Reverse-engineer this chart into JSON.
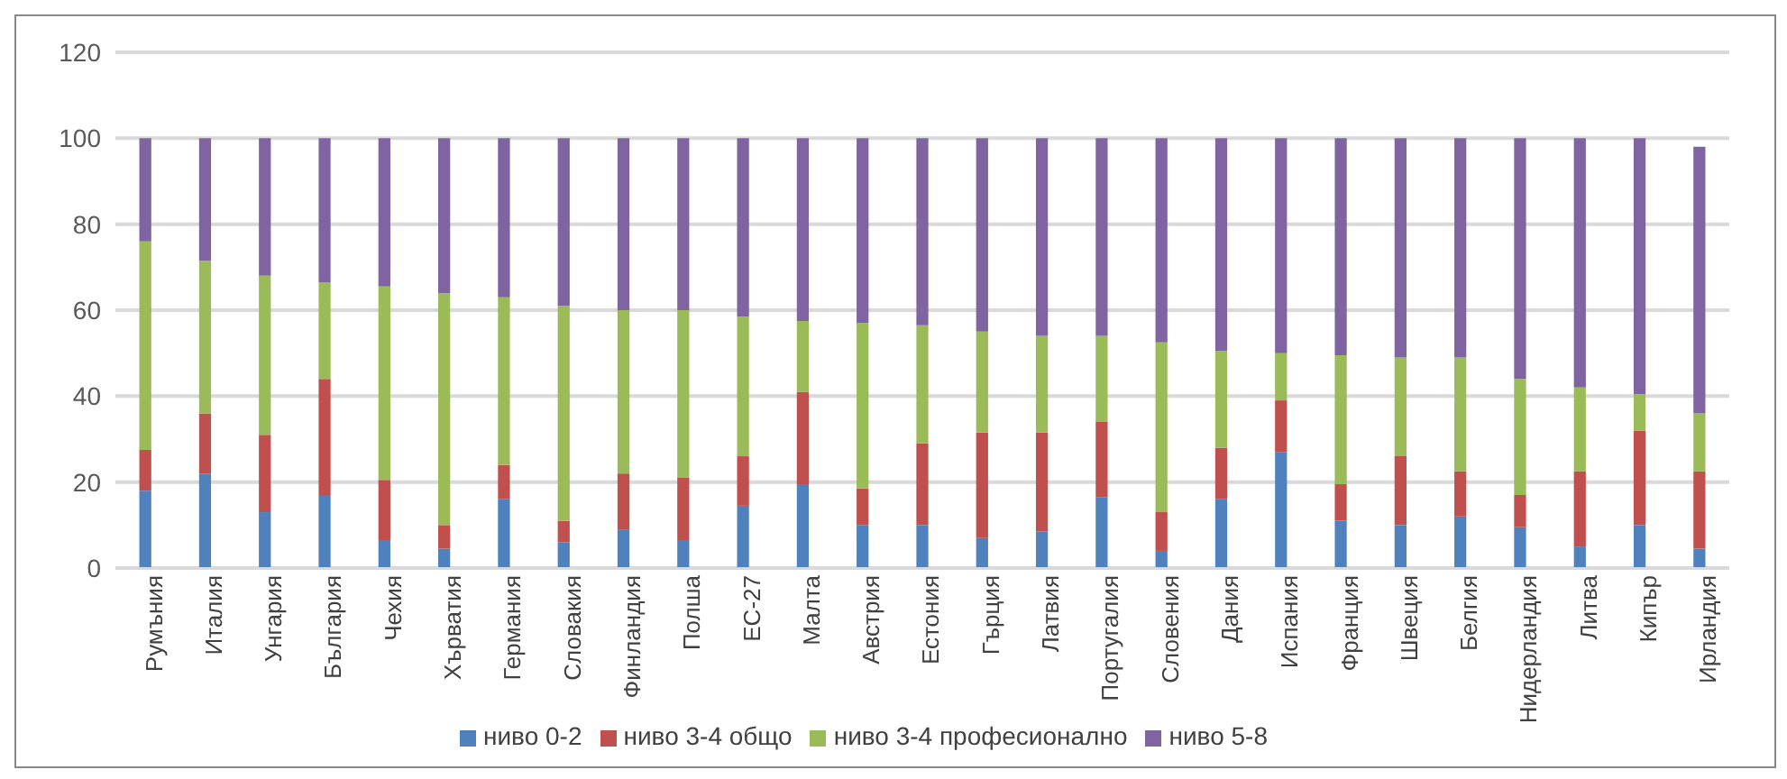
{
  "chart_data": {
    "type": "bar",
    "stacked": true,
    "categories": [
      "Румъния",
      "Италия",
      "Унгария",
      "България",
      "Чехия",
      "Хърватия",
      "Германия",
      "Словакия",
      "Финландия",
      "Полша",
      "ЕС-27",
      "Малта",
      "Австрия",
      "Естония",
      "Гърция",
      "Латвия",
      "Португалия",
      "Словения",
      "Дания",
      "Испания",
      "Франция",
      "Швеция",
      "Белгия",
      "Нидерландия",
      "Литва",
      "Кипър",
      "Ирландия"
    ],
    "series": [
      {
        "name": "ниво 0-2",
        "color": "#4f81bd",
        "values": [
          18,
          22,
          13,
          17,
          6.5,
          4.5,
          16,
          6,
          9,
          6.5,
          14.5,
          19.5,
          10,
          10,
          7,
          8.5,
          16.5,
          4,
          16,
          27,
          11,
          10,
          12,
          9.5,
          5,
          10,
          4.5
        ]
      },
      {
        "name": "ниво 3-4 общо",
        "color": "#c0504d",
        "values": [
          9.5,
          14,
          18,
          27,
          14,
          5.5,
          8,
          5,
          13,
          14.5,
          11.5,
          21.5,
          8.5,
          19,
          24.5,
          23,
          17.5,
          9,
          12,
          12,
          8.5,
          16,
          10.5,
          7.5,
          17.5,
          22,
          18
        ]
      },
      {
        "name": "ниво 3-4 професионално",
        "color": "#9bbb59",
        "values": [
          48.5,
          35.5,
          37,
          22.5,
          45,
          54,
          39,
          50,
          38,
          39,
          32.5,
          16.5,
          38.5,
          27.5,
          23.5,
          22.5,
          20,
          39.5,
          22.5,
          11,
          30,
          23,
          26.5,
          27,
          19.5,
          8.5,
          13.5
        ]
      },
      {
        "name": "ниво 5-8",
        "color": "#8064a2",
        "values": [
          24,
          28.5,
          32,
          33.5,
          34.5,
          36,
          37,
          39,
          40,
          40,
          41.5,
          42.5,
          43,
          43.5,
          45,
          46,
          46,
          47.5,
          49.5,
          50,
          50.5,
          51,
          51,
          56,
          58,
          59.5,
          62
        ]
      }
    ],
    "ylim": [
      0,
      120
    ],
    "yticks": [
      0,
      20,
      40,
      60,
      80,
      100,
      120
    ],
    "grid": "y",
    "legend": "bottom"
  }
}
